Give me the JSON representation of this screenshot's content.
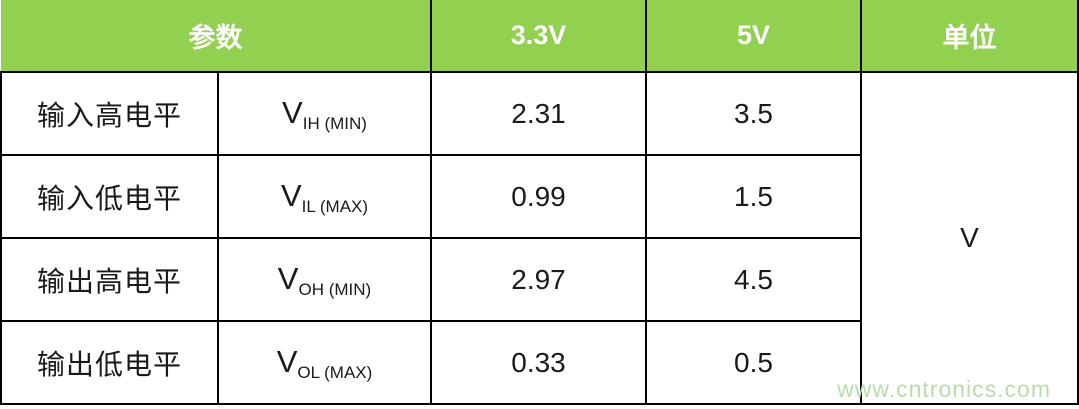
{
  "table": {
    "header": {
      "parameter": "参数",
      "rail_33": "3.3V",
      "rail_5": "5V",
      "unit": "单位"
    },
    "rows": [
      {
        "label": "输入高电平",
        "symbol_base": "V",
        "symbol_sub": "IH (MIN)",
        "v33": "2.31",
        "v5": "3.5"
      },
      {
        "label": "输入低电平",
        "symbol_base": "V",
        "symbol_sub": "IL (MAX)",
        "v33": "0.99",
        "v5": "1.5"
      },
      {
        "label": "输出高电平",
        "symbol_base": "V",
        "symbol_sub": "OH (MIN)",
        "v33": "2.97",
        "v5": "4.5"
      },
      {
        "label": "输出低电平",
        "symbol_base": "V",
        "symbol_sub": "OL (MAX)",
        "v33": "0.33",
        "v5": "0.5"
      }
    ],
    "unit_value": "V"
  },
  "colors": {
    "header_bg": "#92d050",
    "header_text": "#ffffff",
    "border": "#000000",
    "watermark_text": "#b9dcaa"
  },
  "watermark": "www.cntronics.com"
}
